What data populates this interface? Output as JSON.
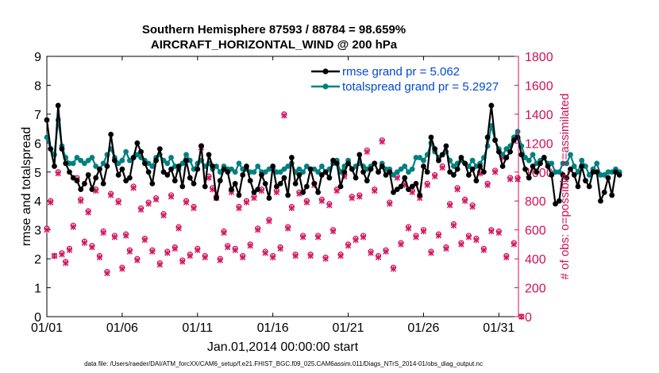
{
  "chart_data": {
    "type": "line",
    "title": "Southern Hemisphere 87593 / 88784 = 98.659%",
    "subtitle": "AIRCRAFT_HORIZONTAL_WIND @ 200 hPa",
    "xlabel": "Jan.01,2014 00:00:00 start",
    "ylabel": "rmse and totalspread",
    "y2label": "# of obs: o=possible; ×=assimilated",
    "footer": "data file: /Users/raeder/DAI/ATM_forcXX/CAM6_setup/f.e21.FHIST_BGC.f09_025.CAM6assim.011/Diags_NTrS_2014-01/obs_diag_output.nc",
    "xlim": [
      1,
      32.3
    ],
    "ylim": [
      0,
      9
    ],
    "y2lim": [
      0,
      1800
    ],
    "x_ticks": [
      1,
      6,
      11,
      16,
      21,
      26,
      31
    ],
    "x_tick_labels": [
      "01/01",
      "01/06",
      "01/11",
      "01/16",
      "01/21",
      "01/26",
      "01/31"
    ],
    "y_ticks": [
      0,
      1,
      2,
      3,
      4,
      5,
      6,
      7,
      8,
      9
    ],
    "y2_ticks": [
      0,
      200,
      400,
      600,
      800,
      1000,
      1200,
      1400,
      1600,
      1800
    ],
    "grid": false,
    "legend": "top-right",
    "colors": {
      "rmse": "#000000",
      "totalspread": "#008080",
      "obs": "#d0105a",
      "legend_text": "#0048d8"
    },
    "series": [
      {
        "name": "rmse grand pr = 5.062",
        "values": [
          6.8,
          5.8,
          5.2,
          7.3,
          5.8,
          5.3,
          5.0,
          4.8,
          4.7,
          4.4,
          4.6,
          4.9,
          4.4,
          4.8,
          5.1,
          4.6,
          5.2,
          6.3,
          5.4,
          4.9,
          5.1,
          4.7,
          4.8,
          5.5,
          6.0,
          5.7,
          5.3,
          5.0,
          4.6,
          5.4,
          5.8,
          5.0,
          4.9,
          5.1,
          4.7,
          5.2,
          4.5,
          5.4,
          4.8,
          4.6,
          5.1,
          5.9,
          4.5,
          5.6,
          5.2,
          4.1,
          4.7,
          5.1,
          5.0,
          4.4,
          4.6,
          4.2,
          4.9,
          5.2,
          4.7,
          4.3,
          4.4,
          4.9,
          4.6,
          4.1,
          5.2,
          4.5,
          4.6,
          4.8,
          4.2,
          5.5,
          4.6,
          4.9,
          4.3,
          4.5,
          5.1,
          4.6,
          4.3,
          4.9,
          5.0,
          4.8,
          5.4,
          5.3,
          4.5,
          5.0,
          5.3,
          5.1,
          4.8,
          5.6,
          5.0,
          4.7,
          5.1,
          5.3,
          5.0,
          5.2,
          4.9,
          5.0,
          4.3,
          4.4,
          4.5,
          4.8,
          4.4,
          4.5,
          4.6,
          4.2,
          5.2,
          5.0,
          6.2,
          5.8,
          5.4,
          5.6,
          5.9,
          5.0,
          4.9,
          5.1,
          5.5,
          5.3,
          4.9,
          5.1,
          4.7,
          5.2,
          5.0,
          6.2,
          7.3,
          6.1,
          5.7,
          5.2,
          5.5,
          5.7,
          6.1,
          6.2,
          5.6,
          5.1,
          4.8,
          5.2,
          5.0,
          5.3,
          5.5,
          5.2,
          4.9,
          3.9,
          4.0,
          4.9,
          4.8,
          5.1,
          4.9,
          4.5,
          5.2,
          4.7,
          4.5,
          5.0,
          5.0,
          4.0,
          4.3,
          4.8,
          4.2,
          5.0,
          4.9
        ]
      },
      {
        "name": "totalspread grand pr = 5.2927",
        "values": [
          6.2,
          5.8,
          5.6,
          6.8,
          5.9,
          5.5,
          5.3,
          5.3,
          5.5,
          5.4,
          5.3,
          5.4,
          5.5,
          5.2,
          5.1,
          5.3,
          5.6,
          5.8,
          5.5,
          5.3,
          5.4,
          5.7,
          5.4,
          5.5,
          5.6,
          5.5,
          5.4,
          5.3,
          5.2,
          5.5,
          5.6,
          5.4,
          5.3,
          5.5,
          5.2,
          5.1,
          5.3,
          5.6,
          5.4,
          5.1,
          5.3,
          5.4,
          5.2,
          5.3,
          5.1,
          5.2,
          5.0,
          5.2,
          5.1,
          5.1,
          5.0,
          5.3,
          5.1,
          5.1,
          5.0,
          5.0,
          5.2,
          5.0,
          5.0,
          5.1,
          5.1,
          5.0,
          5.0,
          5.1,
          5.2,
          5.3,
          5.0,
          5.1,
          5.0,
          5.2,
          5.1,
          5.1,
          5.0,
          5.2,
          5.0,
          5.1,
          5.3,
          5.4,
          5.0,
          5.2,
          5.4,
          5.1,
          5.2,
          5.3,
          5.2,
          5.1,
          5.2,
          5.3,
          5.0,
          5.3,
          5.1,
          5.1,
          4.9,
          5.0,
          5.1,
          5.2,
          5.0,
          5.1,
          5.5,
          5.5,
          5.4,
          5.6,
          6.0,
          5.7,
          5.5,
          5.6,
          5.7,
          5.4,
          5.2,
          5.3,
          5.4,
          5.3,
          5.2,
          5.4,
          5.2,
          5.3,
          5.5,
          5.9,
          6.6,
          6.1,
          5.8,
          5.6,
          5.8,
          5.9,
          6.2,
          6.4,
          5.9,
          5.5,
          5.4,
          5.6,
          5.3,
          5.4,
          5.5,
          5.3,
          5.3,
          5.0,
          5.0,
          5.3,
          5.3,
          5.6,
          5.2,
          5.0,
          5.4,
          5.2,
          4.9,
          5.1,
          5.3,
          4.9,
          4.9,
          5.0,
          5.0,
          5.1,
          5.0
        ]
      }
    ],
    "obs_counts": {
      "name": "# of obs",
      "possible": [
        610,
        800,
        420,
        1000,
        440,
        380,
        470,
        630,
        960,
        810,
        520,
        730,
        490,
        880,
        420,
        590,
        310,
        850,
        560,
        800,
        340,
        570,
        460,
        900,
        400,
        750,
        540,
        790,
        460,
        820,
        370,
        710,
        450,
        840,
        480,
        620,
        390,
        800,
        430,
        760,
        470,
        1180,
        420,
        970,
        890,
        830,
        400,
        590,
        490,
        870,
        470,
        760,
        420,
        800,
        500,
        830,
        610,
        880,
        450,
        670,
        420,
        870,
        480,
        1400,
        620,
        760,
        430,
        860,
        560,
        800,
        430,
        920,
        560,
        810,
        410,
        780,
        600,
        880,
        430,
        980,
        500,
        830,
        540,
        840,
        560,
        1150,
        450,
        880,
        420,
        1220,
        460,
        790,
        340,
        970,
        510,
        920,
        620,
        870,
        560,
        830,
        600,
        920,
        450,
        980,
        570,
        1040,
        480,
        780,
        640,
        890,
        510,
        810,
        560,
        770,
        540,
        1000,
        470,
        920,
        600,
        1010,
        590,
        1110,
        420,
        960,
        510,
        960,
        0
      ],
      "assimilated": [
        600,
        790,
        420,
        990,
        430,
        370,
        460,
        620,
        950,
        800,
        510,
        720,
        480,
        870,
        410,
        580,
        300,
        840,
        550,
        790,
        330,
        560,
        450,
        890,
        390,
        740,
        530,
        780,
        450,
        810,
        360,
        700,
        440,
        830,
        470,
        610,
        380,
        790,
        420,
        750,
        460,
        1170,
        410,
        960,
        880,
        820,
        390,
        580,
        480,
        860,
        460,
        750,
        410,
        790,
        490,
        820,
        600,
        870,
        440,
        660,
        410,
        860,
        470,
        1390,
        610,
        750,
        420,
        850,
        550,
        790,
        420,
        910,
        550,
        800,
        400,
        770,
        590,
        870,
        420,
        970,
        490,
        820,
        530,
        830,
        550,
        1140,
        440,
        870,
        410,
        1210,
        450,
        780,
        330,
        960,
        500,
        910,
        610,
        860,
        550,
        820,
        590,
        910,
        440,
        970,
        560,
        1030,
        470,
        770,
        630,
        880,
        500,
        800,
        550,
        760,
        530,
        990,
        460,
        910,
        590,
        1000,
        580,
        1100,
        410,
        950,
        500,
        950,
        0
      ]
    }
  }
}
